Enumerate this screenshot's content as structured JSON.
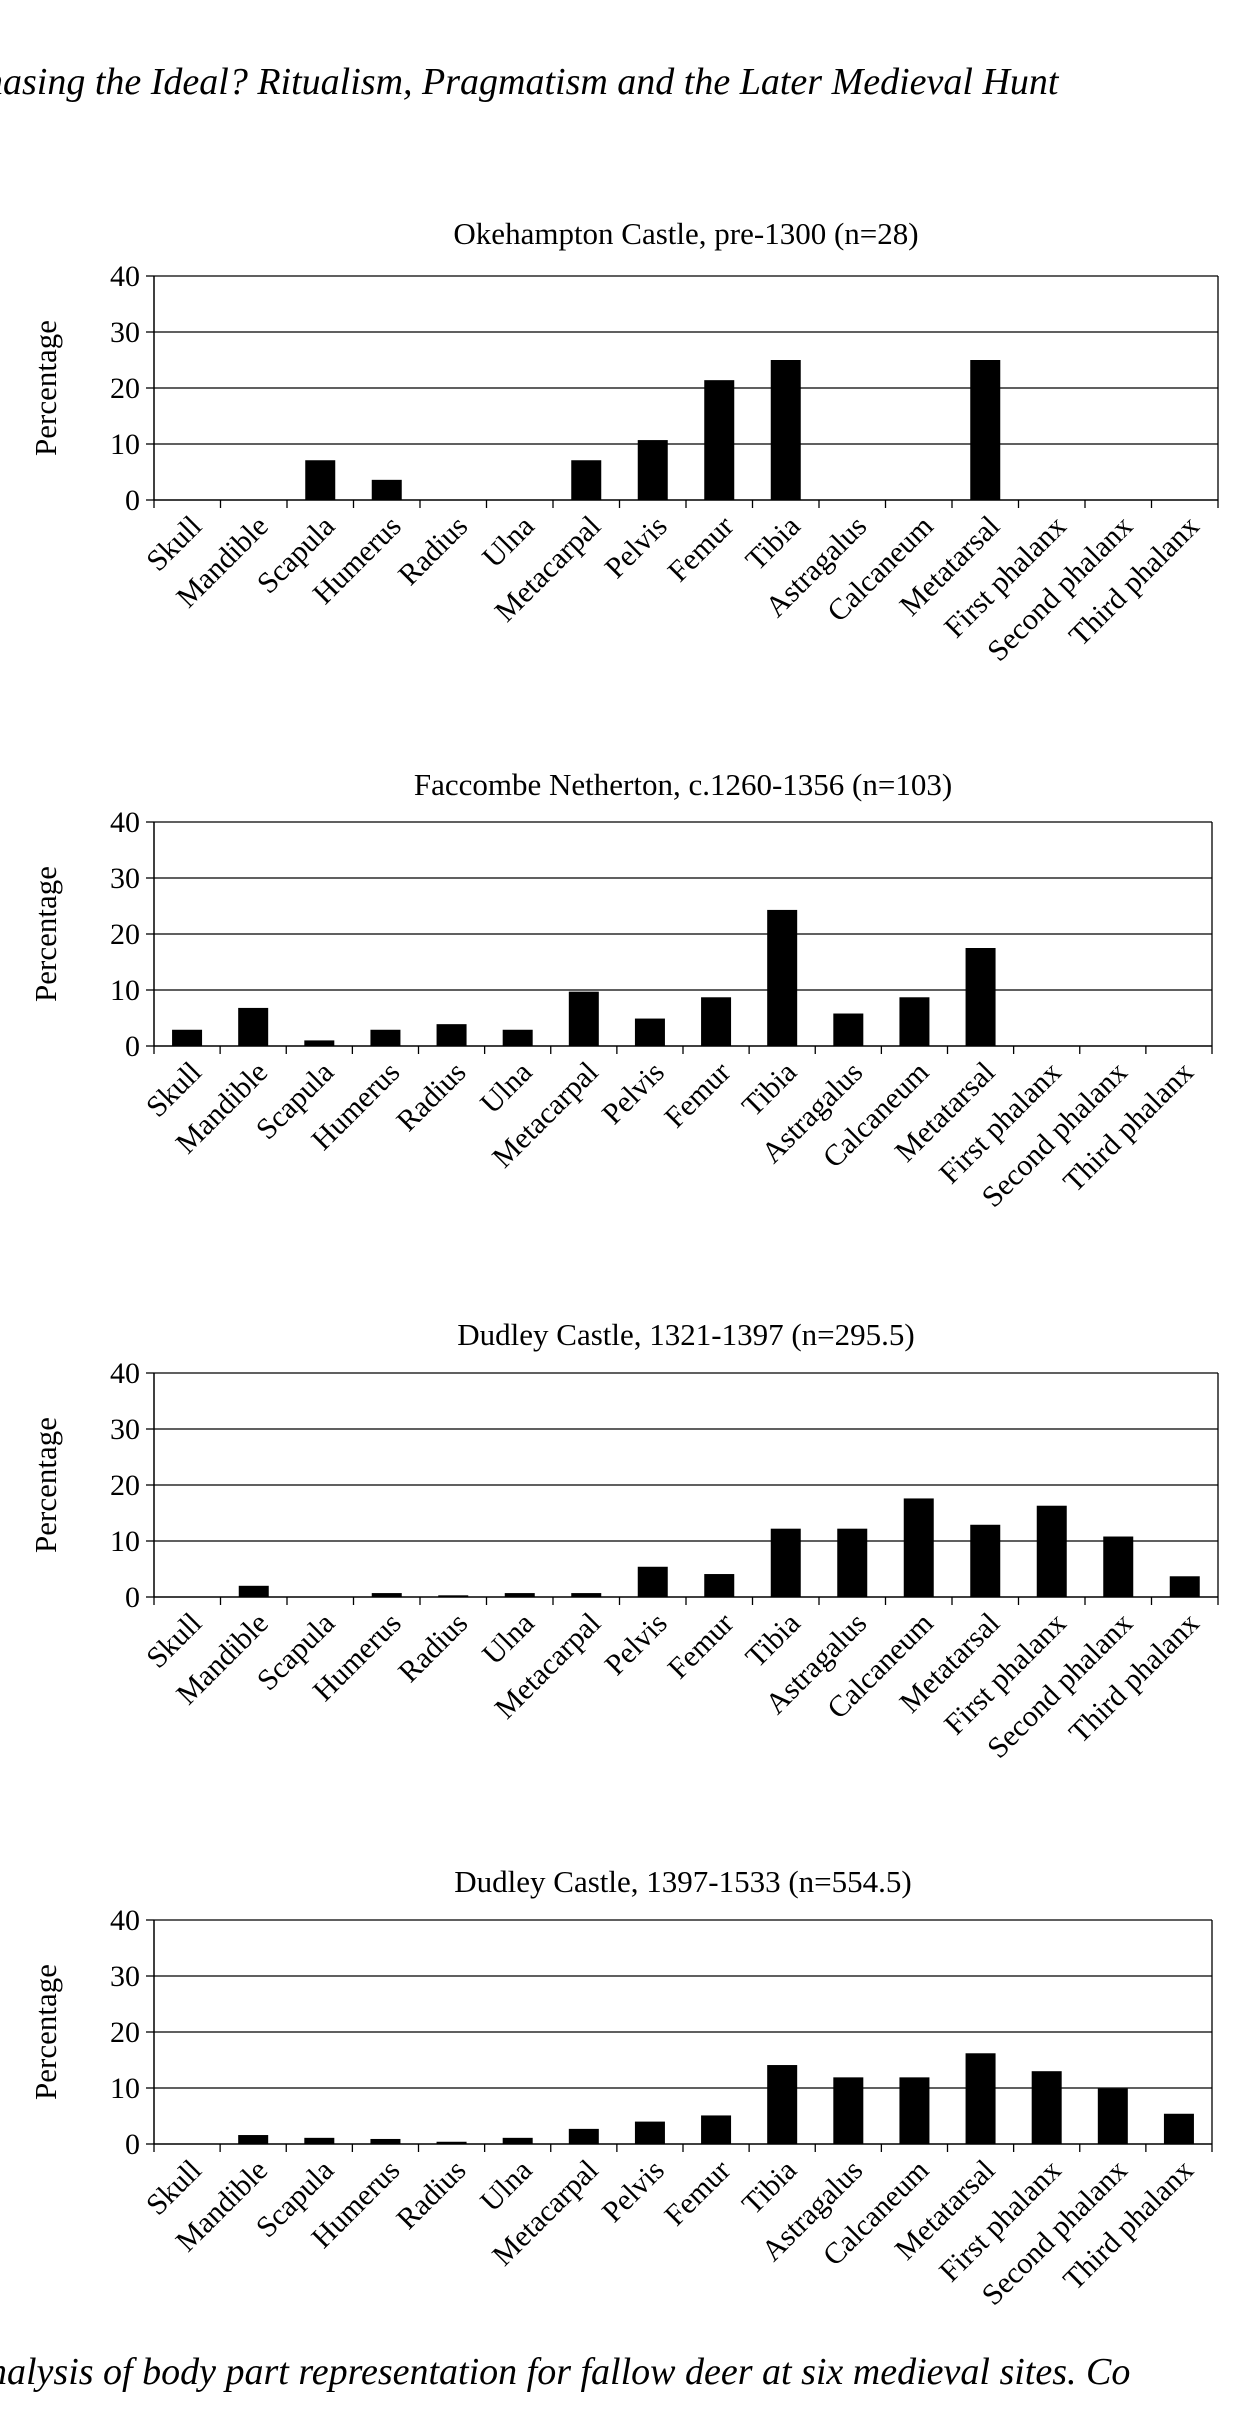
{
  "page": {
    "header": "hasing the Ideal? Ritualism, Pragmatism and the Later Medieval Hunt",
    "caption": "nalysis of body part representation for fallow deer at six medieval sites. Co"
  },
  "chart_data": [
    {
      "type": "bar",
      "title": "Okehampton Castle, pre-1300 (n=28)",
      "ylabel": "Percentage",
      "xlabel": "",
      "ylim": [
        0,
        40
      ],
      "yticks": [
        0,
        10,
        20,
        30,
        40
      ],
      "grid": true,
      "color": "#000000",
      "categories": [
        "Skull",
        "Mandible",
        "Scapula",
        "Humerus",
        "Radius",
        "Ulna",
        "Metacarpal",
        "Pelvis",
        "Femur",
        "Tibia",
        "Astragalus",
        "Calcaneum",
        "Metatarsal",
        "First phalanx",
        "Second phalanx",
        "Third phalanx"
      ],
      "values": [
        0,
        0,
        7.1,
        3.6,
        0,
        0,
        7.1,
        10.7,
        21.4,
        25.0,
        0,
        0,
        25.0,
        0,
        0,
        0
      ]
    },
    {
      "type": "bar",
      "title": "Faccombe Netherton, c.1260-1356 (n=103)",
      "ylabel": "Percentage",
      "xlabel": "",
      "ylim": [
        0,
        40
      ],
      "yticks": [
        0,
        10,
        20,
        30,
        40
      ],
      "grid": true,
      "color": "#000000",
      "categories": [
        "Skull",
        "Mandible",
        "Scapula",
        "Humerus",
        "Radius",
        "Ulna",
        "Metacarpal",
        "Pelvis",
        "Femur",
        "Tibia",
        "Astragalus",
        "Calcaneum",
        "Metatarsal",
        "First phalanx",
        "Second phalanx",
        "Third phalanx"
      ],
      "values": [
        2.9,
        6.8,
        1.0,
        2.9,
        3.9,
        2.9,
        9.7,
        4.9,
        8.7,
        24.3,
        5.8,
        8.7,
        17.5,
        0,
        0,
        0
      ]
    },
    {
      "type": "bar",
      "title": "Dudley Castle, 1321-1397 (n=295.5)",
      "ylabel": "Percentage",
      "xlabel": "",
      "ylim": [
        0,
        40
      ],
      "yticks": [
        0,
        10,
        20,
        30,
        40
      ],
      "grid": true,
      "color": "#000000",
      "categories": [
        "Skull",
        "Mandible",
        "Scapula",
        "Humerus",
        "Radius",
        "Ulna",
        "Metacarpal",
        "Pelvis",
        "Femur",
        "Tibia",
        "Astragalus",
        "Calcaneum",
        "Metatarsal",
        "First phalanx",
        "Second phalanx",
        "Third phalanx"
      ],
      "values": [
        0,
        2.0,
        0,
        0.7,
        0.3,
        0.7,
        0.7,
        5.4,
        4.1,
        12.2,
        12.2,
        17.6,
        12.9,
        16.3,
        10.8,
        3.7
      ]
    },
    {
      "type": "bar",
      "title": "Dudley Castle, 1397-1533 (n=554.5)",
      "ylabel": "Percentage",
      "xlabel": "",
      "ylim": [
        0,
        40
      ],
      "yticks": [
        0,
        10,
        20,
        30,
        40
      ],
      "grid": true,
      "color": "#000000",
      "categories": [
        "Skull",
        "Mandible",
        "Scapula",
        "Humerus",
        "Radius",
        "Ulna",
        "Metacarpal",
        "Pelvis",
        "Femur",
        "Tibia",
        "Astragalus",
        "Calcaneum",
        "Metatarsal",
        "First phalanx",
        "Second phalanx",
        "Third phalanx"
      ],
      "values": [
        0,
        1.6,
        1.1,
        0.9,
        0.4,
        1.1,
        2.7,
        4.0,
        5.1,
        14.1,
        11.9,
        11.9,
        16.2,
        13.0,
        9.9,
        5.4
      ]
    }
  ]
}
